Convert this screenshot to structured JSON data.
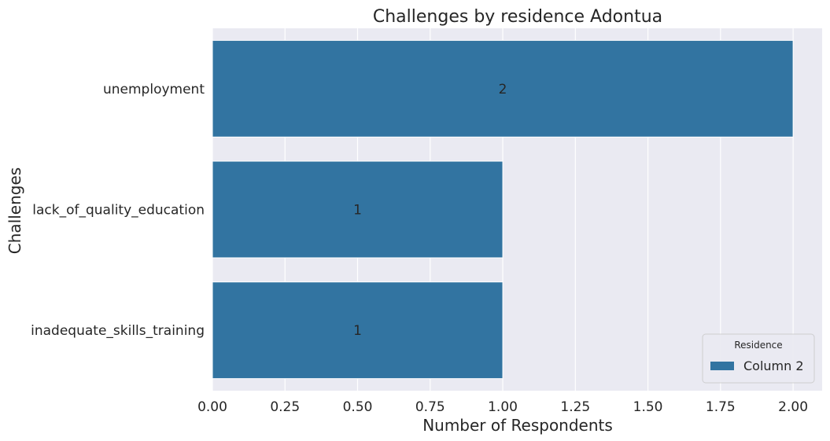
{
  "chart_data": {
    "type": "bar",
    "orientation": "horizontal",
    "title": "Challenges by residence Adontua",
    "xlabel": "Number of Respondents",
    "ylabel": "Challenges",
    "categories": [
      "unemployment",
      "lack_of_quality_education",
      "inadequate_skills_training"
    ],
    "series": [
      {
        "name": "Column 2",
        "values": [
          2,
          1,
          1
        ],
        "color": "#3274a1"
      }
    ],
    "data_labels": [
      "2",
      "1",
      "1"
    ],
    "xlim": [
      0,
      2.1
    ],
    "xticks": [
      0,
      0.25,
      0.5,
      0.75,
      1.0,
      1.25,
      1.5,
      1.75,
      2.0
    ],
    "xtick_labels": [
      "0.00",
      "0.25",
      "0.50",
      "0.75",
      "1.00",
      "1.25",
      "1.50",
      "1.75",
      "2.00"
    ],
    "grid": true,
    "legend": {
      "title": "Residence",
      "position": "bottom-right"
    },
    "colors": {
      "plot_background": "#eaeaf2",
      "grid": "#ffffff",
      "bar": "#3274a1"
    }
  }
}
